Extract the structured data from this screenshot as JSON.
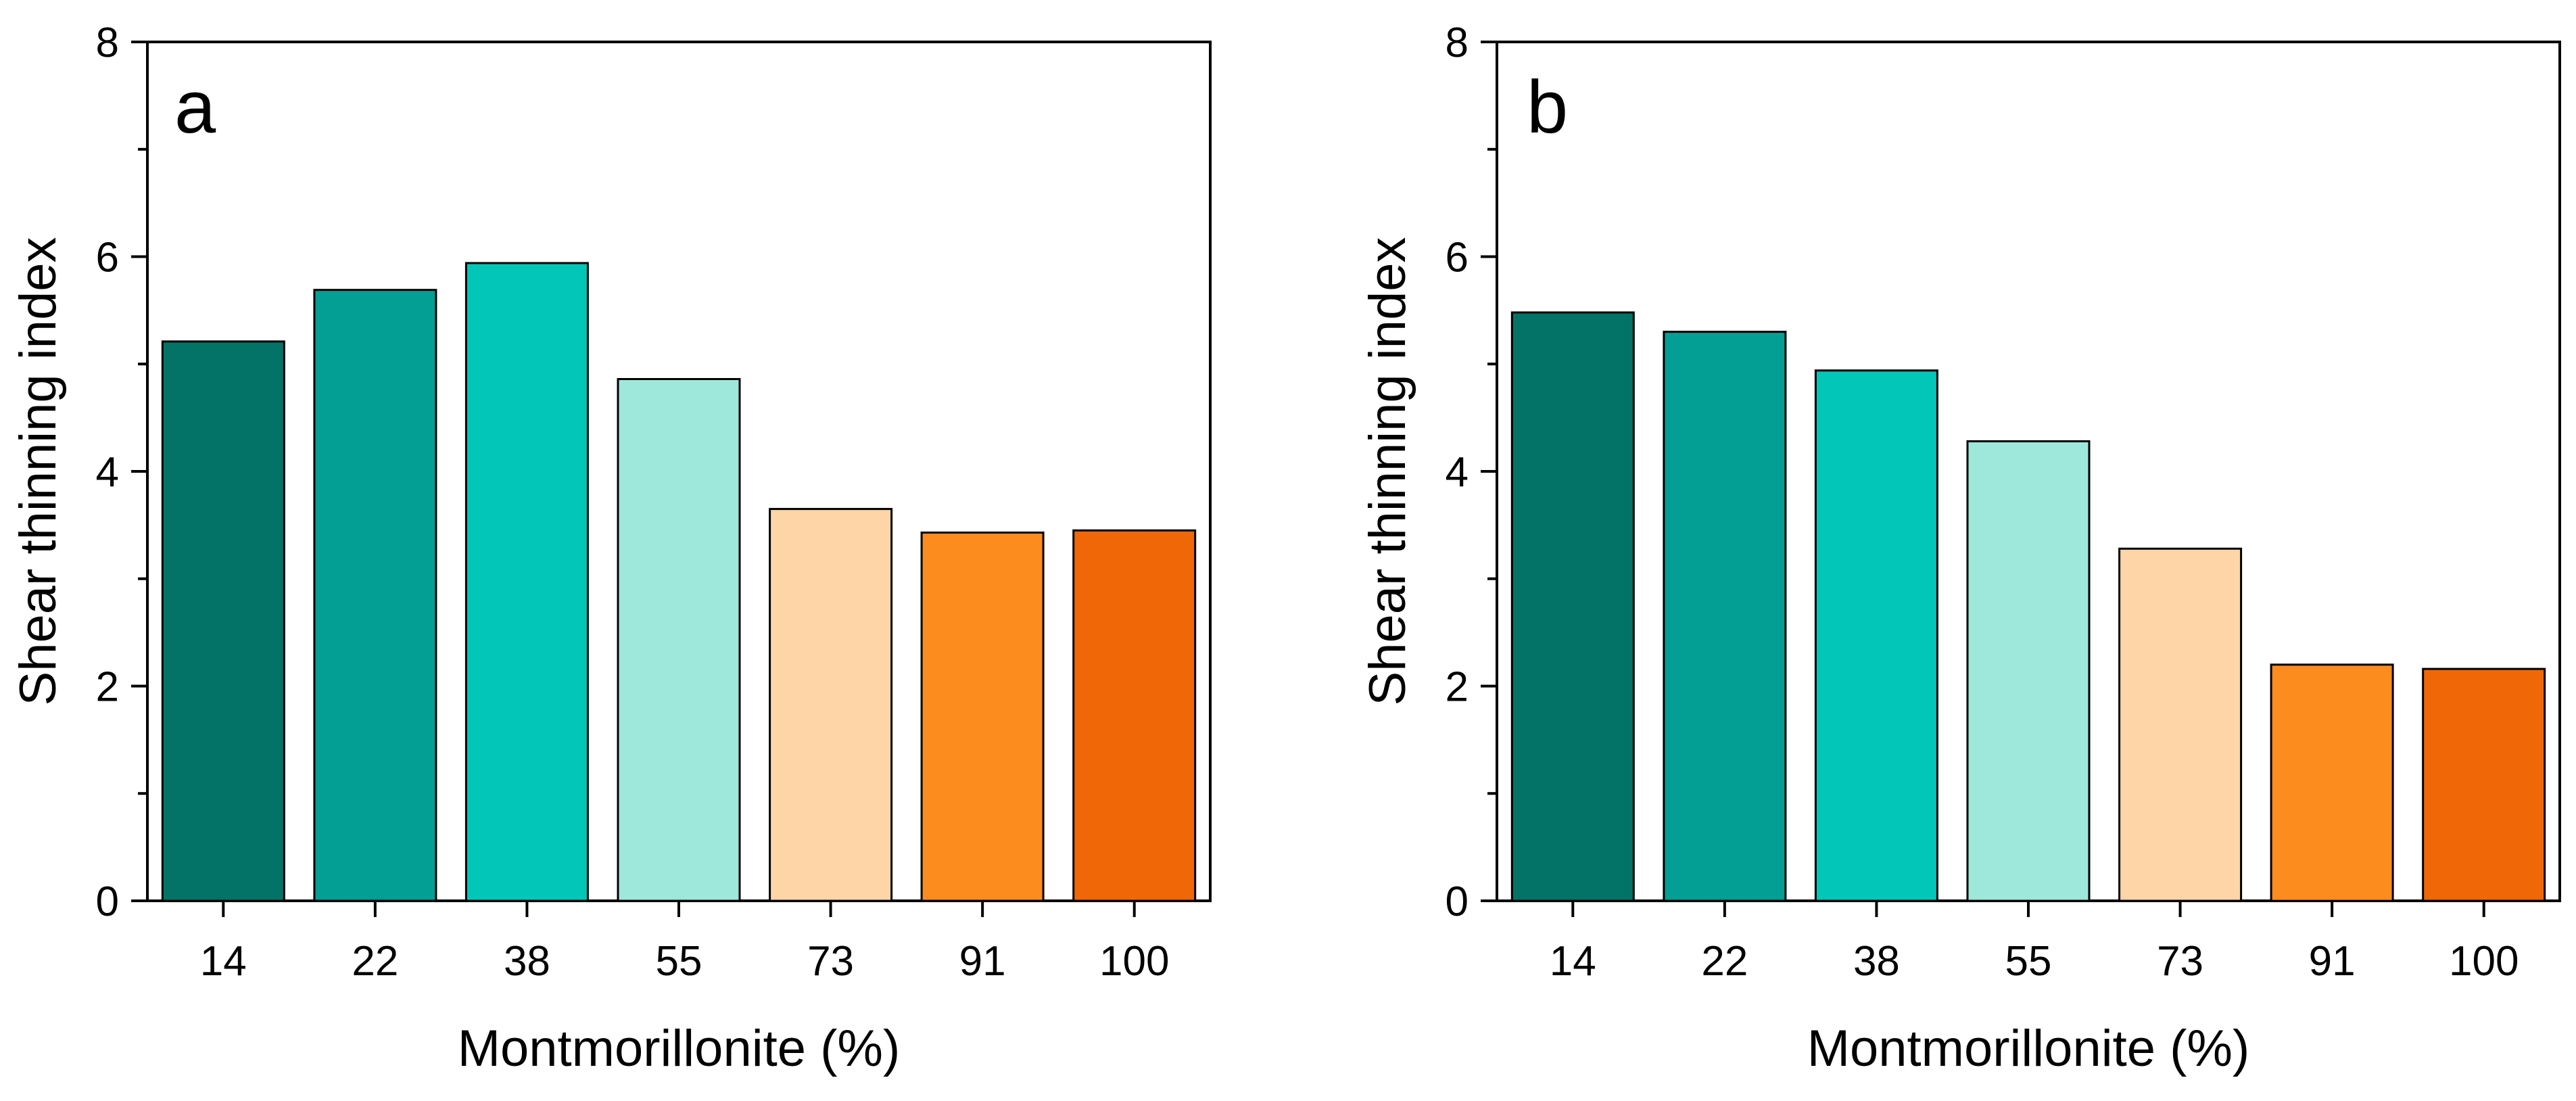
{
  "chart_data": [
    {
      "type": "bar",
      "panel_label": "a",
      "categories": [
        "14",
        "22",
        "38",
        "55",
        "73",
        "91",
        "100"
      ],
      "values": [
        5.21,
        5.69,
        5.94,
        4.86,
        3.65,
        3.43,
        3.45
      ],
      "xlabel": "Montmorillonite (%)",
      "ylabel": "Shear thinning index",
      "ylim": [
        0,
        8
      ],
      "yticks": [
        "0",
        "2",
        "4",
        "6",
        "8"
      ],
      "ytick_values": [
        0,
        2,
        4,
        6,
        8
      ],
      "colors": [
        "#037367",
        "#039e94",
        "#02c7b8",
        "#9de8db",
        "#fdd5a6",
        "#fd8c1e",
        "#f06708"
      ],
      "grid": false,
      "legend": "none"
    },
    {
      "type": "bar",
      "panel_label": "b",
      "categories": [
        "14",
        "22",
        "38",
        "55",
        "73",
        "91",
        "100"
      ],
      "values": [
        5.48,
        5.3,
        4.94,
        4.28,
        3.28,
        2.2,
        2.16
      ],
      "xlabel": "Montmorillonite (%)",
      "ylabel": "Shear thinning index",
      "ylim": [
        0,
        8
      ],
      "yticks": [
        "0",
        "2",
        "4",
        "6",
        "8"
      ],
      "ytick_values": [
        0,
        2,
        4,
        6,
        8
      ],
      "colors": [
        "#037367",
        "#039e94",
        "#02c7b8",
        "#9de8db",
        "#fdd5a6",
        "#fd8c1e",
        "#f06708"
      ],
      "grid": false,
      "legend": "none"
    }
  ]
}
